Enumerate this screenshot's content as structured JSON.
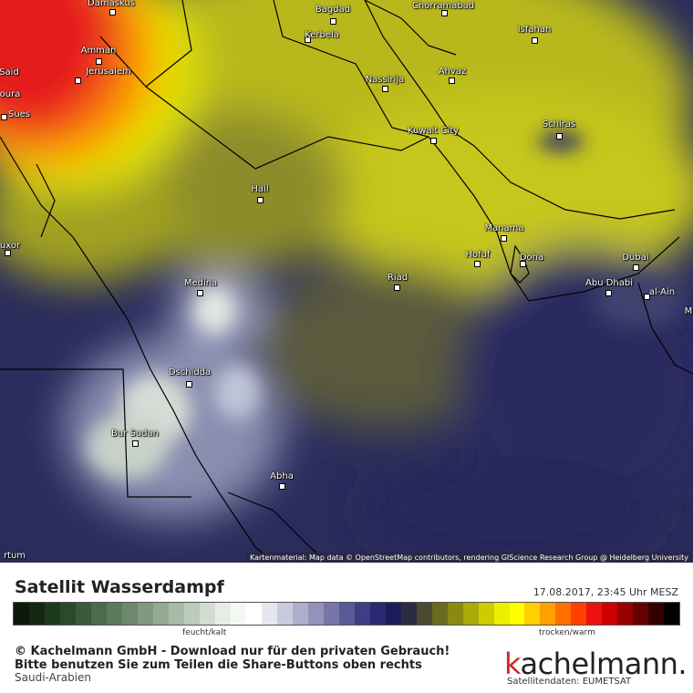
{
  "map": {
    "cities": [
      {
        "name": "Damaskus"
      },
      {
        "name": "Bagdad"
      },
      {
        "name": "Chorramabad"
      },
      {
        "name": "Kerbela"
      },
      {
        "name": "Isfahan"
      },
      {
        "name": "Amman"
      },
      {
        "name": "Jerusalem"
      },
      {
        "name": "Ahvaz"
      },
      {
        "name": "Nassirija"
      },
      {
        "name": "Said"
      },
      {
        "name": "oura"
      },
      {
        "name": "Sues"
      },
      {
        "name": "Schiras"
      },
      {
        "name": "Kuwait City"
      },
      {
        "name": "Hail"
      },
      {
        "name": "Manama"
      },
      {
        "name": "Hofuf"
      },
      {
        "name": "Doha"
      },
      {
        "name": "Dubai"
      },
      {
        "name": "uxor"
      },
      {
        "name": "Riad"
      },
      {
        "name": "Abu Dhabi"
      },
      {
        "name": "al-Ain"
      },
      {
        "name": "M"
      },
      {
        "name": "Medina"
      },
      {
        "name": "Dschidda"
      },
      {
        "name": "Bur Sudan"
      },
      {
        "name": "Abha"
      },
      {
        "name": "rtum"
      }
    ],
    "attribution": "Kartenmaterial: Map data © OpenStreetMap contributors, rendering GIScience Research Group @ Heidelberg University"
  },
  "footer": {
    "title": "Satellit Wasserdampf",
    "timestamp": "17.08.2017, 23:45 Uhr MESZ",
    "scale_label_left": "feucht/kalt",
    "scale_label_right": "trocken/warm",
    "copyright": "© Kachelmann GmbH - Download nur für den privaten Gebrauch!",
    "share_note": "Bitte benutzen Sie zum Teilen die Share-Buttons oben rechts",
    "region": "Saudi-Arabien",
    "brand_k": "k",
    "brand_rest": "achelmann.",
    "source": "Satellitendaten: EUMETSAT"
  },
  "colors": {
    "scale": [
      "#0b1a0b",
      "#142814",
      "#1e3a1e",
      "#2a4a2a",
      "#3b5a3b",
      "#4b6b4b",
      "#5c7a5c",
      "#6e8a6e",
      "#809a80",
      "#93ab93",
      "#a7bba7",
      "#bccbbc",
      "#d2dcd2",
      "#e6ece6",
      "#f5f7f5",
      "#ffffff",
      "#e6e6f0",
      "#cacade",
      "#aeaecc",
      "#9292ba",
      "#7676a8",
      "#5a5a96",
      "#3e3e84",
      "#2a2a72",
      "#1c1c5c",
      "#2c2c40",
      "#4a4a30",
      "#6a6a20",
      "#8a8a10",
      "#aaaa08",
      "#cccc00",
      "#eeee00",
      "#ffff00",
      "#ffd000",
      "#ffa000",
      "#ff7000",
      "#ff4000",
      "#ee1010",
      "#cc0000",
      "#990000",
      "#660000",
      "#330000",
      "#000000"
    ]
  }
}
